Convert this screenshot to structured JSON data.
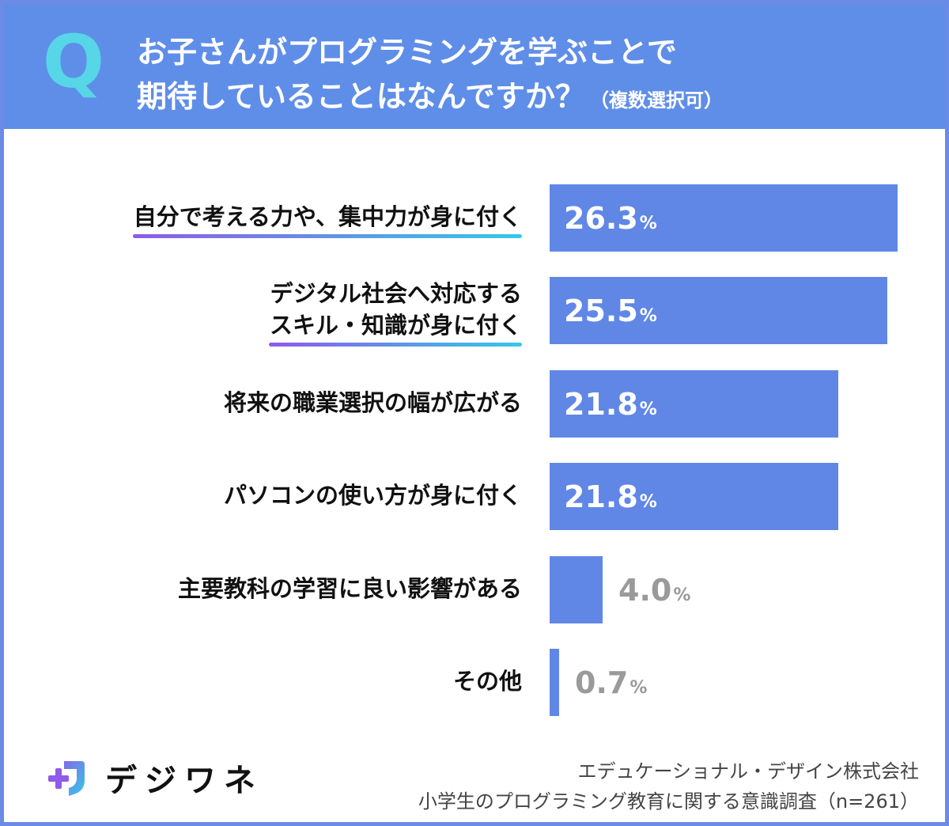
{
  "header": {
    "q_label": "Q",
    "title_line1": "お子さんがプログラミングを学ぶことで",
    "title_line2": "期待していることはなんですか？",
    "title_note": "（複数選択可）"
  },
  "chart_data": {
    "type": "bar",
    "orientation": "horizontal",
    "title": "お子さんがプログラミングを学ぶことで期待していることはなんですか？（複数選択可）",
    "categories": [
      "自分で考える力や、集中力が身に付く",
      "デジタル社会へ対応するスキル・知識が身に付く",
      "将来の職業選択の幅が広がる",
      "パソコンの使い方が身に付く",
      "主要教科の学習に良い影響がある",
      "その他"
    ],
    "category_lines": [
      [
        "自分で考える力や、集中力が身に付く"
      ],
      [
        "デジタル社会へ対応する",
        "スキル・知識が身に付く"
      ],
      [
        "将来の職業選択の幅が広がる"
      ],
      [
        "パソコンの使い方が身に付く"
      ],
      [
        "主要教科の学習に良い影響がある"
      ],
      [
        "その他"
      ]
    ],
    "values": [
      26.3,
      25.5,
      21.8,
      21.8,
      4.0,
      0.7
    ],
    "value_labels": [
      "26.3",
      "25.5",
      "21.8",
      "21.8",
      "4.0",
      "0.7"
    ],
    "unit": "%",
    "underlined": [
      true,
      true,
      false,
      false,
      false,
      false
    ],
    "xlim": [
      0,
      27
    ],
    "bar_color": "#6087e6",
    "highlight_gradient": [
      "#8e5ce8",
      "#35c9e8"
    ],
    "grid": false,
    "legend": "none"
  },
  "footer": {
    "brand": "デジワネ",
    "company": "エデュケーショナル・デザイン株式会社",
    "survey": "小学生のプログラミング教育に関する意識調査（n=261）"
  }
}
